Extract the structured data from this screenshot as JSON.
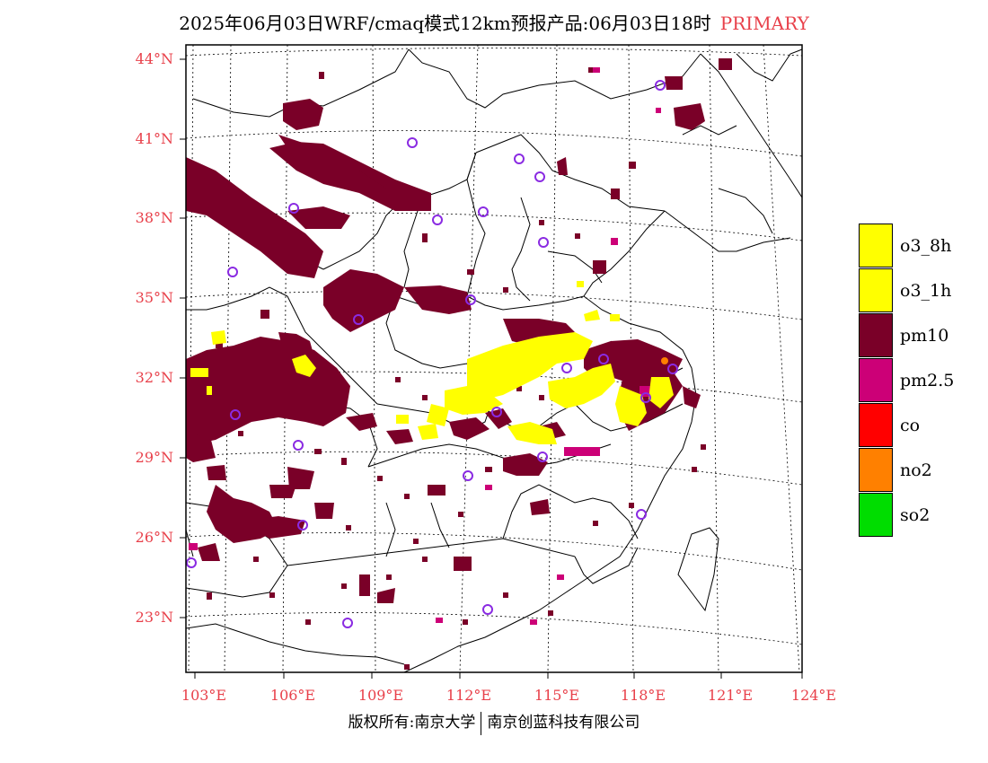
{
  "title": {
    "text": "2025年06月03日WRF/cmaq模式12km预报产品:06月03日18时",
    "tag": "PRIMARY",
    "tag_color": "#e8404a"
  },
  "axes": {
    "label_color": "#e8404a",
    "lat_labels": [
      "44°N",
      "41°N",
      "38°N",
      "35°N",
      "32°N",
      "29°N",
      "26°N",
      "23°N"
    ],
    "lon_labels": [
      "103°E",
      "106°E",
      "109°E",
      "112°E",
      "115°E",
      "118°E",
      "121°E",
      "124°E"
    ]
  },
  "legend": [
    {
      "label": "o3_8h",
      "color": "#ffff00"
    },
    {
      "label": "o3_1h",
      "color": "#ffff00"
    },
    {
      "label": "pm10",
      "color": "#7a0028"
    },
    {
      "label": "pm2.5",
      "color": "#cc0077"
    },
    {
      "label": "co",
      "color": "#ff0000"
    },
    {
      "label": "no2",
      "color": "#ff8000"
    },
    {
      "label": "so2",
      "color": "#00dd00"
    }
  ],
  "stations_color": "#8a2be2",
  "copyright": {
    "left": "版权所有:南京大学",
    "right": "南京创蓝科技有限公司"
  }
}
